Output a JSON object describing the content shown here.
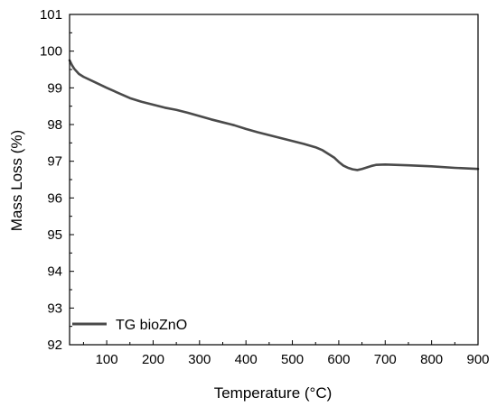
{
  "chart_data": {
    "type": "line",
    "title": "",
    "xlabel": "Temperature (°C)",
    "ylabel": "Mass Loss (%)",
    "xlim": [
      20,
      900
    ],
    "ylim": [
      92,
      101
    ],
    "xticks": [
      100,
      200,
      300,
      400,
      500,
      600,
      700,
      800,
      900
    ],
    "yticks": [
      92,
      93,
      94,
      95,
      96,
      97,
      98,
      99,
      100,
      101
    ],
    "grid": false,
    "legend_position": "bottom-left",
    "series": [
      {
        "name": "TG bioZnO",
        "color": "#4a4a4a",
        "x": [
          20,
          25,
          30,
          40,
          50,
          75,
          100,
          125,
          150,
          175,
          200,
          225,
          250,
          275,
          300,
          325,
          350,
          375,
          400,
          425,
          450,
          475,
          500,
          525,
          550,
          565,
          575,
          590,
          600,
          610,
          620,
          630,
          640,
          650,
          660,
          670,
          680,
          700,
          750,
          800,
          850,
          900
        ],
        "y": [
          99.75,
          99.62,
          99.52,
          99.38,
          99.3,
          99.15,
          99.0,
          98.86,
          98.72,
          98.62,
          98.54,
          98.46,
          98.4,
          98.32,
          98.23,
          98.14,
          98.06,
          97.98,
          97.88,
          97.79,
          97.71,
          97.63,
          97.55,
          97.47,
          97.38,
          97.3,
          97.22,
          97.1,
          96.98,
          96.88,
          96.82,
          96.78,
          96.76,
          96.79,
          96.83,
          96.87,
          96.9,
          96.91,
          96.89,
          96.86,
          96.82,
          96.79
        ]
      }
    ]
  }
}
